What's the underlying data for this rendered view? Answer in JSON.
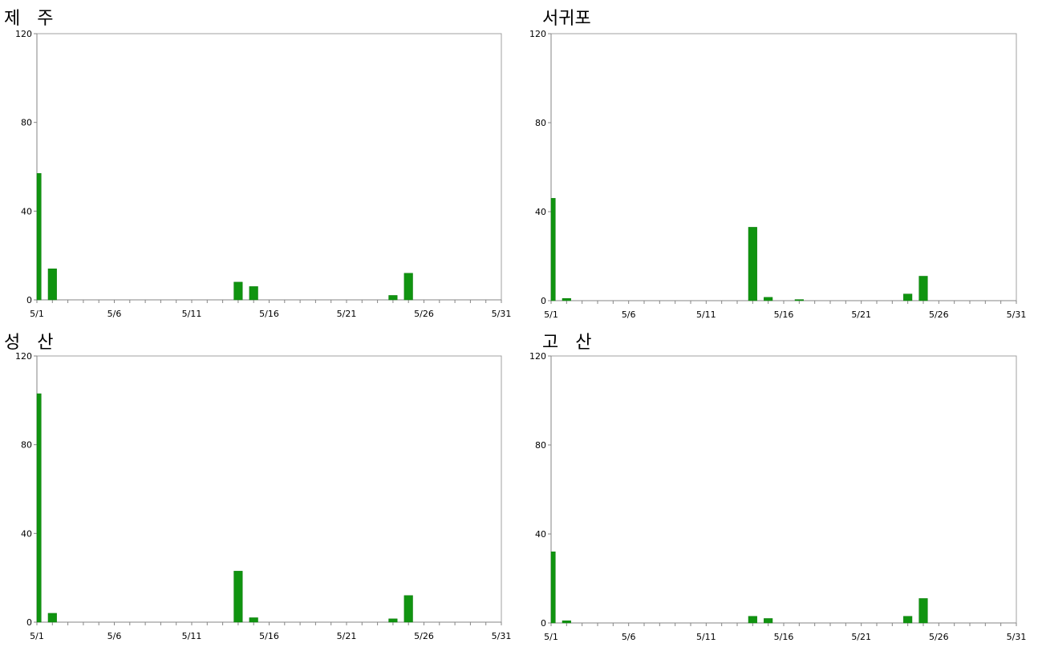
{
  "chart_data": [
    {
      "type": "bar",
      "title": "제   주",
      "x": [
        "5/1",
        "5/2",
        "5/14",
        "5/15",
        "5/24",
        "5/25"
      ],
      "values": [
        57,
        14,
        8,
        6,
        2,
        12
      ],
      "x_tick_labels": [
        "5/1",
        "5/6",
        "5/11",
        "5/16",
        "5/21",
        "5/26",
        "5/31"
      ],
      "y_tick_labels": [
        "0",
        "40",
        "80",
        "120"
      ],
      "ylim": [
        0,
        120
      ],
      "bar_color": "#109410",
      "grid": false
    },
    {
      "type": "bar",
      "title": "서귀포",
      "x": [
        "5/1",
        "5/2",
        "5/14",
        "5/15",
        "5/17",
        "5/24",
        "5/25"
      ],
      "values": [
        46,
        1,
        33,
        1.5,
        0.5,
        3,
        11
      ],
      "x_tick_labels": [
        "5/1",
        "5/6",
        "5/11",
        "5/16",
        "5/21",
        "5/26",
        "5/31"
      ],
      "y_tick_labels": [
        "0",
        "40",
        "80",
        "120"
      ],
      "ylim": [
        0,
        120
      ],
      "bar_color": "#109410",
      "grid": false
    },
    {
      "type": "bar",
      "title": "성   산",
      "x": [
        "5/1",
        "5/2",
        "5/14",
        "5/15",
        "5/24",
        "5/25"
      ],
      "values": [
        103,
        4,
        23,
        2,
        1.5,
        12
      ],
      "x_tick_labels": [
        "5/1",
        "5/6",
        "5/11",
        "5/16",
        "5/21",
        "5/26",
        "5/31"
      ],
      "y_tick_labels": [
        "0",
        "40",
        "80",
        "120"
      ],
      "ylim": [
        0,
        120
      ],
      "bar_color": "#109410",
      "grid": false
    },
    {
      "type": "bar",
      "title": "고   산",
      "x": [
        "5/1",
        "5/2",
        "5/14",
        "5/15",
        "5/24",
        "5/25"
      ],
      "values": [
        32,
        1,
        3,
        2,
        3,
        11
      ],
      "x_tick_labels": [
        "5/1",
        "5/6",
        "5/11",
        "5/16",
        "5/21",
        "5/26",
        "5/31"
      ],
      "y_tick_labels": [
        "0",
        "40",
        "80",
        "120"
      ],
      "ylim": [
        0,
        120
      ],
      "bar_color": "#109410",
      "grid": false
    }
  ]
}
